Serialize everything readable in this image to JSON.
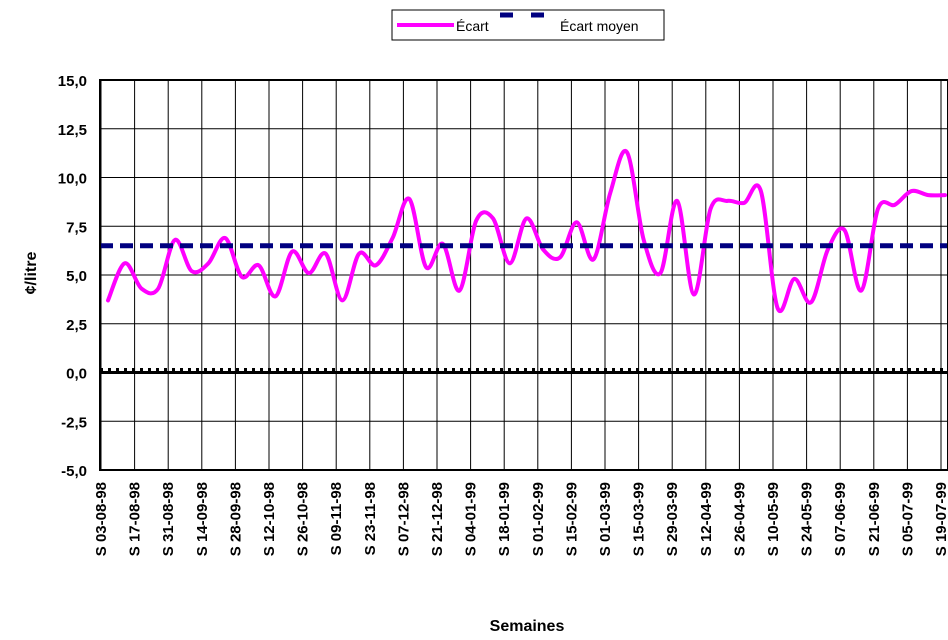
{
  "chart_data": {
    "type": "line",
    "xlabel": "Semaines",
    "ylabel": "¢/litre",
    "ylim": [
      -5,
      15
    ],
    "yticks": [
      -5,
      -2.5,
      0,
      2.5,
      5,
      7.5,
      10,
      12.5,
      15
    ],
    "ytick_labels": [
      "-5,0",
      "-2,5",
      "0,0",
      "2,5",
      "5,0",
      "7,5",
      "10,0",
      "12,5",
      "15,0"
    ],
    "grid": true,
    "legend_position": "top-center",
    "x_tick_labels": [
      "S 03-08-98",
      "S 17-08-98",
      "S 31-08-98",
      "S 14-09-98",
      "S 28-09-98",
      "S 12-10-98",
      "S 26-10-98",
      "S 09-11-98",
      "S 23-11-98",
      "S 07-12-98",
      "S 21-12-98",
      "S 04-01-99",
      "S 18-01-99",
      "S 01-02-99",
      "S 15-02-99",
      "S 01-03-99",
      "S 15-03-99",
      "S 29-03-99",
      "S 12-04-99",
      "S 26-04-99",
      "S 10-05-99",
      "S 24-05-99",
      "S 07-06-99",
      "S 21-06-99",
      "S 05-07-99",
      "S 19-07-99"
    ],
    "series": [
      {
        "name": "Écart",
        "color": "#ff00ff",
        "style": "solid",
        "values": [
          3.7,
          5.6,
          4.3,
          4.3,
          6.8,
          5.2,
          5.6,
          6.9,
          4.9,
          5.5,
          3.9,
          6.2,
          5.1,
          6.1,
          3.7,
          6.1,
          5.5,
          6.9,
          8.9,
          5.4,
          6.6,
          4.2,
          7.8,
          7.9,
          5.6,
          7.9,
          6.3,
          5.9,
          7.7,
          5.8,
          9.2,
          11.3,
          6.8,
          5.1,
          8.8,
          4.0,
          8.4,
          8.8,
          8.7,
          9.3,
          3.3,
          4.8,
          3.6,
          6.3,
          7.3,
          4.2,
          8.4,
          8.6,
          9.3,
          9.1,
          9.1
        ]
      },
      {
        "name": "Écart moyen",
        "color": "#000080",
        "style": "dashed",
        "values": [
          6.5,
          6.5,
          6.5,
          6.5,
          6.5,
          6.5,
          6.5,
          6.5,
          6.5,
          6.5,
          6.5,
          6.5,
          6.5,
          6.5,
          6.5,
          6.5,
          6.5,
          6.5,
          6.5,
          6.5,
          6.5,
          6.5,
          6.5,
          6.5,
          6.5,
          6.5,
          6.5,
          6.5,
          6.5,
          6.5,
          6.5,
          6.5,
          6.5,
          6.5,
          6.5,
          6.5,
          6.5,
          6.5,
          6.5,
          6.5,
          6.5,
          6.5,
          6.5,
          6.5,
          6.5,
          6.5,
          6.5,
          6.5,
          6.5,
          6.5,
          6.5
        ]
      }
    ]
  }
}
